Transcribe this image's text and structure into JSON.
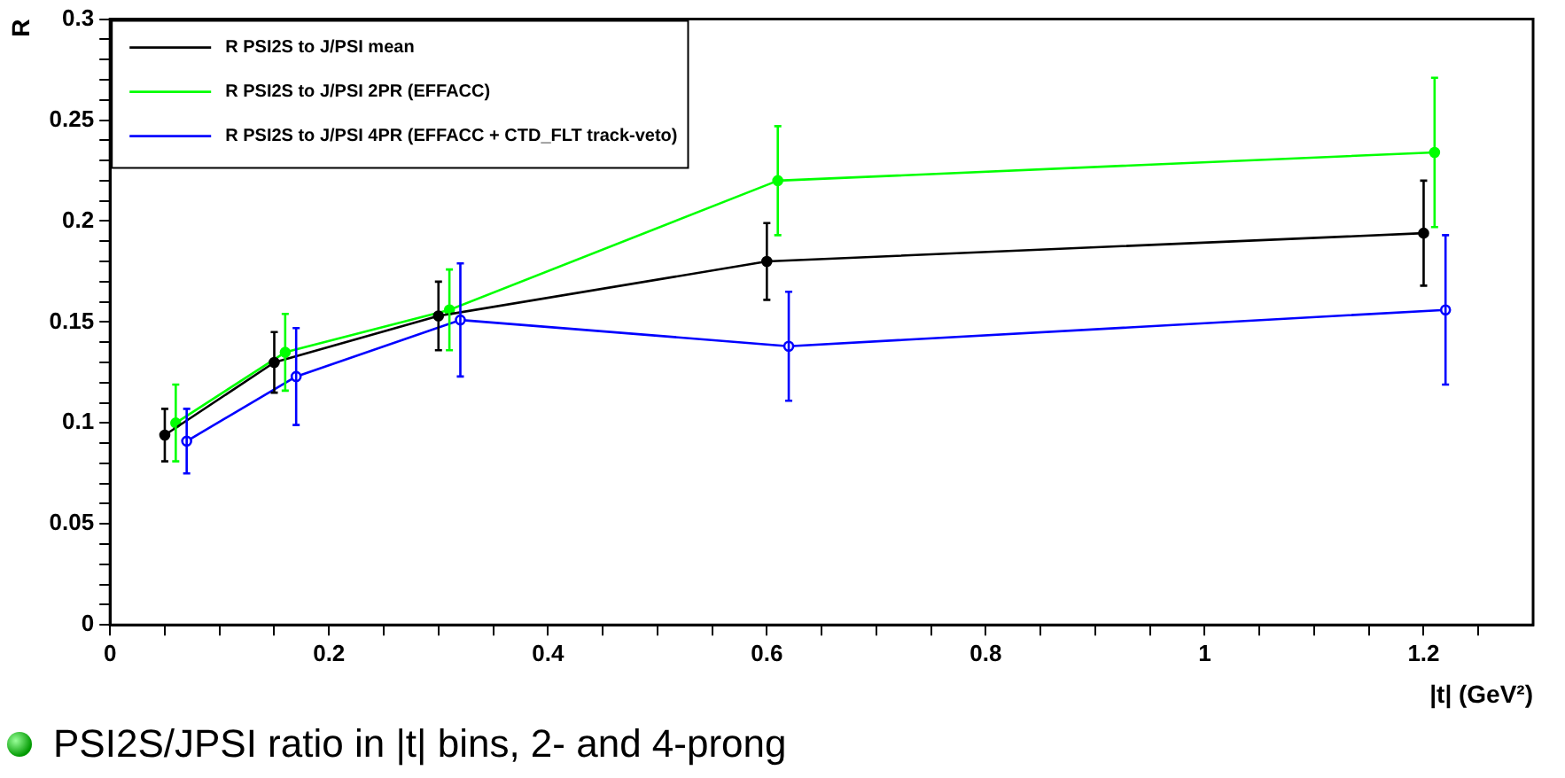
{
  "chart_data": {
    "type": "line",
    "xlabel": "|t| (GeV²)",
    "ylabel": "R",
    "xlim": [
      0,
      1.3
    ],
    "xticks": [
      0,
      {
        "value": 0.05,
        "label": null
      },
      0.2,
      {
        "value": 0.1,
        "label": null
      },
      {
        "value": 0.15,
        "label": null
      },
      {
        "value": 0.25,
        "label": null
      },
      {
        "value": 0.3,
        "label": null
      },
      {
        "value": 0.35,
        "label": null
      },
      0.4,
      {
        "value": 0.45,
        "label": null
      },
      {
        "value": 0.5,
        "label": null
      },
      {
        "value": 0.55,
        "label": null
      },
      0.6,
      {
        "value": 0.65,
        "label": null
      },
      {
        "value": 0.7,
        "label": null
      },
      {
        "value": 0.75,
        "label": null
      },
      0.8,
      {
        "value": 0.85,
        "label": null
      },
      {
        "value": 0.9,
        "label": null
      },
      {
        "value": 0.95,
        "label": null
      },
      1,
      {
        "value": 1.05,
        "label": null
      },
      {
        "value": 1.1,
        "label": null
      },
      {
        "value": 1.15,
        "label": null
      },
      1.2,
      {
        "value": 1.25,
        "label": null
      }
    ],
    "ylim": [
      0,
      0.3
    ],
    "yticks": [
      0,
      {
        "value": 0.01,
        "label": null
      },
      {
        "value": 0.02,
        "label": null
      },
      {
        "value": 0.03,
        "label": null
      },
      {
        "value": 0.04,
        "label": null
      },
      0.05,
      {
        "value": 0.06,
        "label": null
      },
      {
        "value": 0.07,
        "label": null
      },
      {
        "value": 0.08,
        "label": null
      },
      {
        "value": 0.09,
        "label": null
      },
      0.1,
      {
        "value": 0.11,
        "label": null
      },
      {
        "value": 0.12,
        "label": null
      },
      {
        "value": 0.13,
        "label": null
      },
      {
        "value": 0.14,
        "label": null
      },
      0.15,
      {
        "value": 0.16,
        "label": null
      },
      {
        "value": 0.17,
        "label": null
      },
      {
        "value": 0.18,
        "label": null
      },
      {
        "value": 0.19,
        "label": null
      },
      0.2,
      {
        "value": 0.21,
        "label": null
      },
      {
        "value": 0.22,
        "label": null
      },
      {
        "value": 0.23,
        "label": null
      },
      {
        "value": 0.24,
        "label": null
      },
      0.25,
      {
        "value": 0.26,
        "label": null
      },
      {
        "value": 0.27,
        "label": null
      },
      {
        "value": 0.28,
        "label": null
      },
      {
        "value": 0.29,
        "label": null
      },
      0.3
    ],
    "grid": false,
    "legend": "top left",
    "marker": "circle",
    "line_style": "solid",
    "series": [
      {
        "name": "R PSI2S to J/PSI mean",
        "color": "#000000",
        "x": [
          0.05,
          0.15,
          0.3,
          0.6,
          1.2
        ],
        "values": [
          0.094,
          0.13,
          0.153,
          0.18,
          0.194
        ],
        "errors": [
          0.013,
          0.015,
          0.017,
          0.019,
          0.026
        ]
      },
      {
        "name": "R PSI2S to J/PSI 2PR (EFFACC)",
        "color": "#00ff00",
        "x": [
          0.06,
          0.16,
          0.31,
          0.61,
          1.21
        ],
        "values": [
          0.1,
          0.135,
          0.156,
          0.22,
          0.234
        ],
        "errors": [
          0.019,
          0.019,
          0.02,
          0.027,
          0.037
        ]
      },
      {
        "name": "R PSI2S to J/PSI 4PR (EFFACC + CTD_FLT track-veto)",
        "color": "#0000ff",
        "x": [
          0.07,
          0.17,
          0.32,
          0.62,
          1.22
        ],
        "values": [
          0.091,
          0.123,
          0.151,
          0.138,
          0.156
        ],
        "errors": [
          0.016,
          0.024,
          0.028,
          0.027,
          0.037
        ]
      }
    ],
    "annotations": [
      "PSI2S/JPSI ratio in |t| bins, 2- and 4-prong"
    ]
  }
}
